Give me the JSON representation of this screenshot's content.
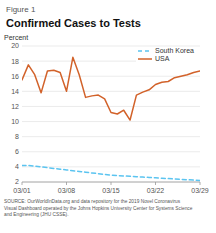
{
  "chart_data": {
    "type": "line",
    "subtitle": "Figure 1",
    "title": "Confirmed Cases to Tests",
    "ylabel": "Percent",
    "annotations": [
      "SOURCE: OurWorldInData.org and data repository for the 2019 Novel Coronavirus\nVisual Dashboard operated by the Johns Hopkins University Center for Systems Science\nand Engineering (JHU CSSE)."
    ],
    "categories": [
      "03/01",
      null,
      null,
      null,
      null,
      null,
      null,
      "03/08",
      null,
      null,
      null,
      null,
      null,
      null,
      "03/15",
      null,
      null,
      null,
      null,
      null,
      null,
      "03/22",
      null,
      null,
      null,
      null,
      null,
      null,
      "03/29"
    ],
    "series": [
      {
        "name": "USA",
        "color": "#d2622a",
        "line_style": "solid",
        "values": [
          15.5,
          17.5,
          16.2,
          13.8,
          16.7,
          16.8,
          16.5,
          14.0,
          18.5,
          16.2,
          13.2,
          13.4,
          13.5,
          13.0,
          11.2,
          11.0,
          11.5,
          10.2,
          13.5,
          13.9,
          14.2,
          14.9,
          15.2,
          15.3,
          15.8,
          16.0,
          16.2,
          16.5,
          16.7
        ]
      },
      {
        "name": "South Korea",
        "color": "#5bc4f0",
        "line_style": "dashed",
        "values": [
          4.2,
          4.2,
          4.1,
          4.0,
          3.9,
          3.8,
          3.7,
          3.6,
          3.5,
          3.4,
          3.3,
          3.2,
          3.1,
          3.0,
          2.9,
          2.85,
          2.8,
          2.75,
          2.7,
          2.65,
          2.6,
          2.55,
          2.5,
          2.45,
          2.4,
          2.35,
          2.3,
          2.25,
          2.2
        ]
      }
    ],
    "ylim": [
      2,
      20
    ],
    "yticks": [
      2,
      4,
      6,
      8,
      10,
      12,
      14,
      16,
      18,
      20
    ],
    "grid": true,
    "legend": "upper right"
  }
}
